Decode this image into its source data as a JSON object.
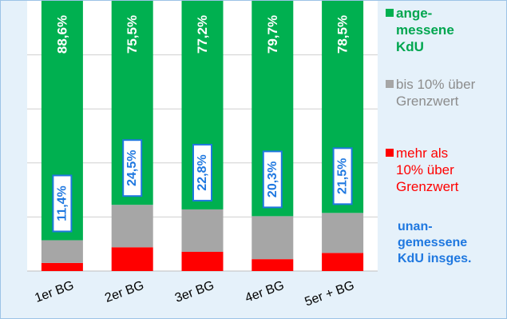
{
  "colors": {
    "background": "#e5f1fa",
    "plot_area": "#ffffff",
    "appropriate": "#00b050",
    "up_to_10": "#a6a6a6",
    "over_10": "#ff0000",
    "total_label": "#1f78e0"
  },
  "legend": {
    "appropriate": "ange-\nmessene\nKdU",
    "up_to_10": "bis 10% über\nGrenzwert",
    "over_10": "mehr als\n10% über\nGrenzwert",
    "total_inappropriate": "unan-\ngemessene\nKdU insges."
  },
  "chart_data": {
    "type": "bar",
    "stacked": true,
    "title": "",
    "xlabel": "",
    "ylabel": "",
    "ylim": [
      0,
      100
    ],
    "y_tick_labels_visible": false,
    "grid": true,
    "legend_position": "right",
    "categories": [
      "1er BG",
      "2er BG",
      "3er BG",
      "4er BG",
      "5er + BG"
    ],
    "series": [
      {
        "name": "mehr als 10% über Grenzwert",
        "values": [
          3.0,
          8.8,
          7.1,
          4.4,
          6.7
        ]
      },
      {
        "name": "bis 10% über Grenzwert",
        "values": [
          8.4,
          15.7,
          15.7,
          15.9,
          14.8
        ]
      },
      {
        "name": "angemessene KdU",
        "values": [
          88.6,
          75.5,
          77.2,
          79.7,
          78.5
        ]
      }
    ],
    "top_labels": [
      "88,6%",
      "75,5%",
      "77,2%",
      "79,7%",
      "78,5%"
    ],
    "total_inappropriate_labels": [
      "11,4%",
      "24,5%",
      "22,8%",
      "20,3%",
      "21,5%"
    ]
  }
}
